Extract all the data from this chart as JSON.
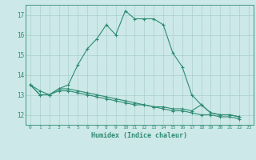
{
  "xlabel": "Humidex (Indice chaleur)",
  "x": [
    0,
    1,
    2,
    3,
    4,
    5,
    6,
    7,
    8,
    9,
    10,
    11,
    12,
    13,
    14,
    15,
    16,
    17,
    18,
    19,
    20,
    21,
    22,
    23
  ],
  "line1": [
    13.5,
    13.2,
    13.0,
    13.3,
    13.5,
    14.5,
    15.3,
    15.8,
    16.5,
    16.0,
    17.2,
    16.8,
    16.8,
    16.8,
    16.5,
    15.1,
    14.4,
    13.0,
    12.5,
    12.1,
    12.0,
    12.0,
    11.9,
    null
  ],
  "line2": [
    13.5,
    13.0,
    13.0,
    13.3,
    13.3,
    13.2,
    13.1,
    13.0,
    12.9,
    12.8,
    12.7,
    12.6,
    12.5,
    12.4,
    12.4,
    12.3,
    12.3,
    12.2,
    12.5,
    12.1,
    12.0,
    12.0,
    11.9,
    null
  ],
  "line3": [
    13.5,
    13.0,
    13.0,
    13.2,
    13.2,
    13.1,
    13.0,
    12.9,
    12.8,
    12.7,
    12.6,
    12.5,
    12.5,
    12.4,
    12.3,
    12.2,
    12.2,
    12.1,
    12.0,
    12.0,
    11.9,
    11.9,
    11.8,
    null
  ],
  "line_color": "#2e8b72",
  "bg_color": "#cce8e8",
  "grid_color": "#aacfcf",
  "ylim": [
    11.5,
    17.5
  ],
  "xlim": [
    -0.5,
    23.5
  ],
  "yticks": [
    12,
    13,
    14,
    15,
    16,
    17
  ],
  "xticks": [
    0,
    1,
    2,
    3,
    4,
    5,
    6,
    7,
    8,
    9,
    10,
    11,
    12,
    13,
    14,
    15,
    16,
    17,
    18,
    19,
    20,
    21,
    22,
    23
  ]
}
